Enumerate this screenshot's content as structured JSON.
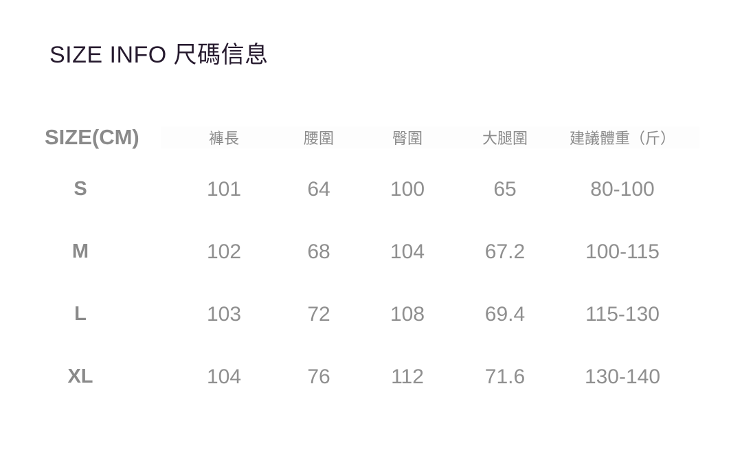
{
  "chart_data": {
    "type": "table",
    "title": "SIZE INFO 尺碼信息",
    "unit": "cm",
    "columns": [
      "SIZE(CM)",
      "褲長",
      "腰圍",
      "臀圍",
      "大腿圍",
      "建議體重（斤）"
    ],
    "rows": [
      [
        "S",
        101,
        64,
        100,
        65,
        "80-100"
      ],
      [
        "M",
        102,
        68,
        104,
        67.2,
        "100-115"
      ],
      [
        "L",
        103,
        72,
        108,
        69.4,
        "115-130"
      ],
      [
        "XL",
        104,
        76,
        112,
        71.6,
        "130-140"
      ]
    ],
    "layout_hints": {
      "grid": "off",
      "borders": "none",
      "value_alignment": "center"
    }
  },
  "colors": {
    "title_text": "#261a2e",
    "header_text": "#8a8a8a",
    "size_label_text": "#8a8a8a",
    "value_text": "#8f8f8f",
    "background": "#ffffff"
  }
}
